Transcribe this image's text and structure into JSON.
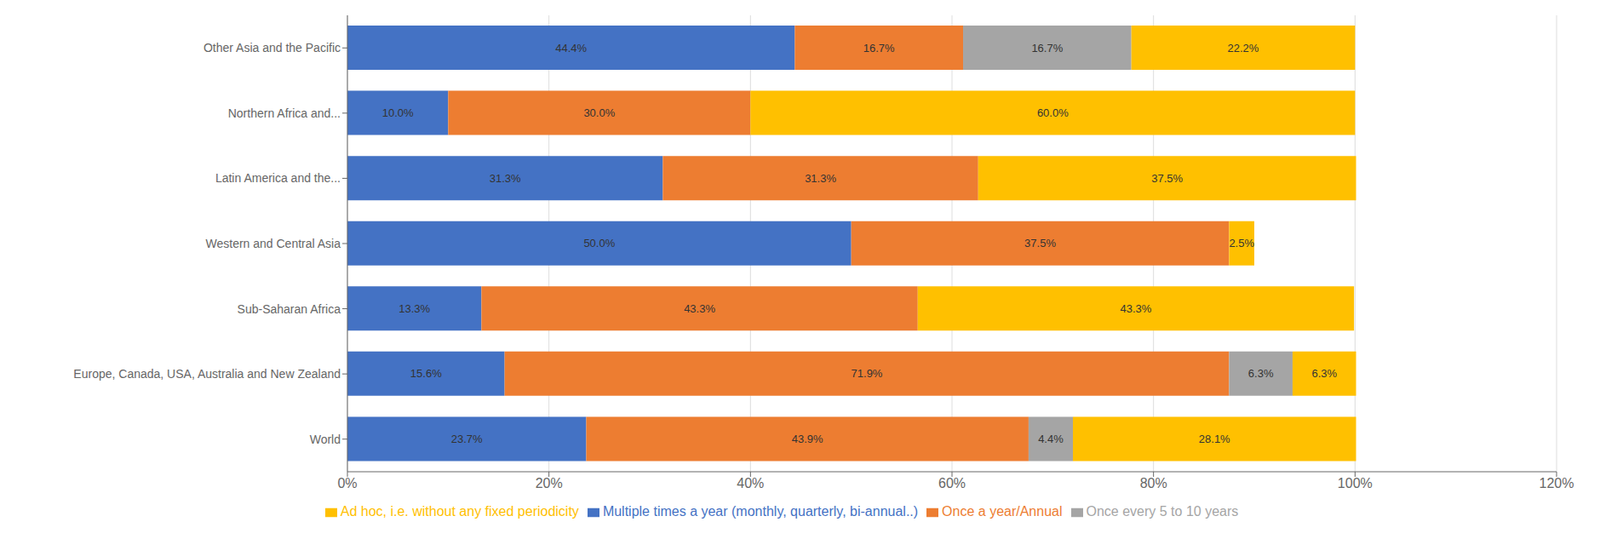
{
  "chart_data": {
    "type": "bar",
    "orientation": "horizontal",
    "stacked": true,
    "data_labels": true,
    "grid": true,
    "legend": "bottom",
    "categories": [
      "World",
      "Europe, Canada, USA, Australia and New Zealand",
      "Sub-Saharan Africa",
      "Western and Central Asia",
      "Latin America and the...",
      "Northern Africa and...",
      "Other Asia and the Pacific"
    ],
    "series": [
      {
        "name": "Multiple times a year (monthly, quarterly, bi-annual..)",
        "color": "#4472C4",
        "values": [
          23.7,
          15.6,
          13.3,
          50.0,
          31.3,
          10.0,
          44.4
        ],
        "value_labels": [
          "23.7%",
          "15.6%",
          "13.3%",
          "50.0%",
          "31.3%",
          "10.0%",
          "44.4%"
        ]
      },
      {
        "name": "Once a year/Annual",
        "color": "#ED7D31",
        "values": [
          43.9,
          71.9,
          43.3,
          37.5,
          31.3,
          30.0,
          16.7
        ],
        "value_labels": [
          "43.9%",
          "71.9%",
          "43.3%",
          "37.5%",
          "31.3%",
          "30.0%",
          "16.7%"
        ]
      },
      {
        "name": "Once every 5 to 10 years",
        "color": "#A5A5A5",
        "values": [
          4.4,
          6.3,
          0.0,
          0.0,
          0.0,
          0.0,
          16.7
        ],
        "value_labels": [
          "4.4%",
          "6.3%",
          null,
          null,
          null,
          null,
          "16.7%"
        ]
      },
      {
        "name": "Ad hoc, i.e. without any fixed periodicity",
        "color": "#FFC000",
        "values": [
          28.1,
          6.3,
          43.3,
          2.5,
          37.5,
          60.0,
          22.2
        ],
        "value_labels": [
          "28.1%",
          "6.3%",
          "43.3%",
          "2.5%",
          "37.5%",
          "60.0%",
          "22.2%"
        ]
      }
    ],
    "xlim": [
      0,
      120
    ],
    "xticks": [
      {
        "value": 0,
        "label": "0%"
      },
      {
        "value": 20,
        "label": "20%"
      },
      {
        "value": 40,
        "label": "40%"
      },
      {
        "value": 60,
        "label": "60%"
      },
      {
        "value": 80,
        "label": "80%"
      },
      {
        "value": 100,
        "label": "100%"
      },
      {
        "value": 120,
        "label": "120%"
      }
    ]
  }
}
